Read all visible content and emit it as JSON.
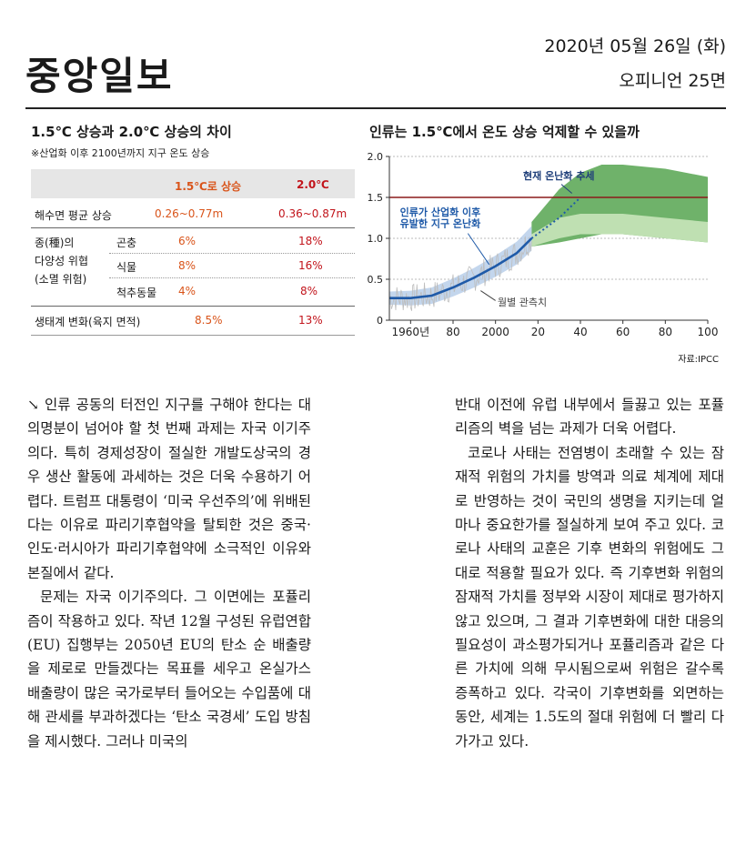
{
  "header": {
    "logo": "중앙일보",
    "date": "2020년 05월 26일 (화)",
    "page": "오피니언 25면"
  },
  "table": {
    "title": "1.5℃ 상승과 2.0℃ 상승의 차이",
    "note": "※산업화 이후 2100년까지 지구 온도 상승",
    "col_15": "1.5℃로 상승",
    "col_20": "2.0℃",
    "rows": {
      "sea": {
        "label": "해수면 평균 상승",
        "v15": "0.26~0.77m",
        "v20": "0.36~0.87m"
      },
      "species_label_1": "종(種)의",
      "species_label_2": "다양성 위협",
      "species_label_3": "(소멸 위험)",
      "insect": {
        "label": "곤충",
        "v15": "6%",
        "v20": "18%"
      },
      "plant": {
        "label": "식물",
        "v15": "8%",
        "v20": "16%"
      },
      "vertebrate": {
        "label": "척추동물",
        "v15": "4%",
        "v20": "8%"
      },
      "eco": {
        "label": "생태계 변화(육지 면적)",
        "v15": "8.5%",
        "v20": "13%"
      }
    }
  },
  "chart": {
    "title": "인류는 1.5℃에서 온도 상승 억제할 수 있을까",
    "annotation_trend": "현재 온난화 추세",
    "annotation_human_1": "인류가 산업화 이후",
    "annotation_human_2": "유발한 지구 온난화",
    "annotation_monthly": "월별 관측치",
    "source": "자료:IPCC",
    "colors": {
      "threshold": "#8b1a1a",
      "trend": "#1f5aa8",
      "green_dark": "#6fb26a",
      "green_light": "#bfe0b2",
      "observed": "#bdbdbd",
      "band": "#aac4e6"
    }
  },
  "chart_data": {
    "type": "line",
    "title": "인류는 1.5℃에서 온도 상승 억제할 수 있을까",
    "xlabel": "",
    "ylabel": "",
    "x_ticks": [
      "1960년",
      "80",
      "2000",
      "20",
      "40",
      "60",
      "80",
      "100"
    ],
    "x_tick_years": [
      1960,
      1980,
      2000,
      2020,
      2040,
      2060,
      2080,
      2100
    ],
    "y_ticks": [
      "0",
      "0.5",
      "1.0",
      "1.5",
      "2.0"
    ],
    "y_tick_values": [
      0,
      0.5,
      1.0,
      1.5,
      2.0
    ],
    "xlim": [
      1950,
      2100
    ],
    "ylim": [
      0,
      2.0
    ],
    "threshold": 1.5,
    "warming": {
      "x": [
        1950,
        1960,
        1970,
        1980,
        1990,
        2000,
        2010,
        2017
      ],
      "y": [
        0.27,
        0.27,
        0.3,
        0.4,
        0.52,
        0.66,
        0.82,
        1.0
      ]
    },
    "trend_projection": {
      "x": [
        2017,
        2030,
        2040
      ],
      "y": [
        1.0,
        1.25,
        1.5
      ]
    },
    "range_outer": {
      "x": [
        2017,
        2030,
        2040,
        2050,
        2060,
        2080,
        2100
      ],
      "low": [
        0.9,
        0.95,
        1.0,
        1.05,
        1.05,
        1.0,
        0.95
      ],
      "high": [
        1.2,
        1.6,
        1.8,
        1.9,
        1.9,
        1.85,
        1.75
      ]
    },
    "range_inner": {
      "x": [
        2017,
        2030,
        2040,
        2050,
        2060,
        2080,
        2100
      ],
      "low": [
        0.9,
        1.0,
        1.05,
        1.05,
        1.05,
        1.0,
        0.95
      ],
      "high": [
        1.05,
        1.25,
        1.3,
        1.3,
        1.3,
        1.25,
        1.2
      ]
    }
  },
  "article": {
    "col1": [
      "↘ 인류 공동의 터전인 지구를 구해야 한다는 대의명분이 넘어야 할 첫 번째 과제는 자국 이기주의다. 특히 경제성장이 절실한 개발도상국의 경우 생산 활동에 과세하는 것은 더욱 수용하기 어렵다. 트럼프 대통령이 ‘미국 우선주의’에 위배된다는 이유로 파리기후협약을 탈퇴한 것은 중국·인도·러시아가 파리기후협약에 소극적인 이유와 본질에서 같다.",
      "문제는 자국 이기주의다. 그 이면에는 포퓰리즘이 작용하고 있다. 작년 12월 구성된 유럽연합(EU) 집행부는 2050년 EU의 탄소 순 배출량을 제로로 만들겠다는 목표를 세우고 온실가스 배출량이 많은 국가로부터 들어오는 수입품에 대해 관세를 부과하겠다는 ‘탄소 국경세’ 도입 방침을 제시했다. 그러나 미국의"
    ],
    "col2": [
      "반대 이전에 유럽 내부에서 들끓고 있는 포퓰리즘의 벽을 넘는 과제가 더욱 어렵다.",
      "코로나 사태는 전염병이 초래할 수 있는 잠재적 위험의 가치를 방역과 의료 체계에 제대로 반영하는 것이 국민의 생명을 지키는데 얼마나 중요한가를 절실하게 보여 주고 있다. 코로나 사태의 교훈은 기후 변화의 위험에도 그대로 적용할 필요가 있다. 즉 기후변화 위험의 잠재적 가치를 정부와 시장이 제대로 평가하지 않고 있으며, 그 결과 기후변화에 대한 대응의 필요성이 과소평가되거나 포퓰리즘과 같은 다른 가치에 의해 무시됨으로써 위험은 갈수록 증폭하고 있다. 각국이 기후변화를 외면하는 동안, 세계는 1.5도의 절대 위험에 더 빨리 다가가고 있다."
    ]
  }
}
